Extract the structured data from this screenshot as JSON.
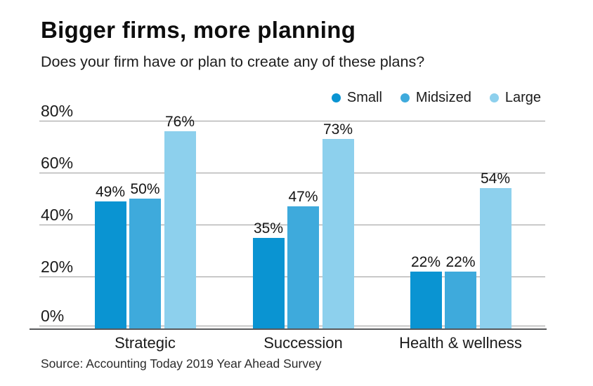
{
  "header": {
    "title": "Bigger firms, more planning",
    "subtitle": "Does your firm have or plan to create any of these plans?"
  },
  "source_line": "Source: Accounting Today 2019 Year Ahead Survey",
  "colors": {
    "series_small": "#0a94d2",
    "series_midsized": "#3eaadc",
    "series_large": "#8dd0ed",
    "gridline": "#9b9b9b",
    "axisline": "#58595b",
    "text": "#1a1a1a"
  },
  "chart_data": {
    "type": "bar",
    "title": "Bigger firms, more planning",
    "subtitle": "Does your firm have or plan to create any of these plans?",
    "categories": [
      "Strategic",
      "Succession",
      "Health & wellness"
    ],
    "series": [
      {
        "name": "Small",
        "color": "#0a94d2",
        "values": [
          49,
          35,
          22
        ]
      },
      {
        "name": "Midsized",
        "color": "#3eaadc",
        "values": [
          50,
          47,
          22
        ]
      },
      {
        "name": "Large",
        "color": "#8dd0ed",
        "values": [
          76,
          73,
          54
        ]
      }
    ],
    "value_labels_shown": true,
    "value_suffix": "%",
    "xlabel": "",
    "ylabel": "",
    "ylim": [
      0,
      80
    ],
    "yticks": [
      0,
      20,
      40,
      60,
      80
    ],
    "ytick_suffix": "%",
    "grid": true,
    "legend_position": "top-right",
    "source": "Source: Accounting Today 2019 Year Ahead Survey"
  }
}
